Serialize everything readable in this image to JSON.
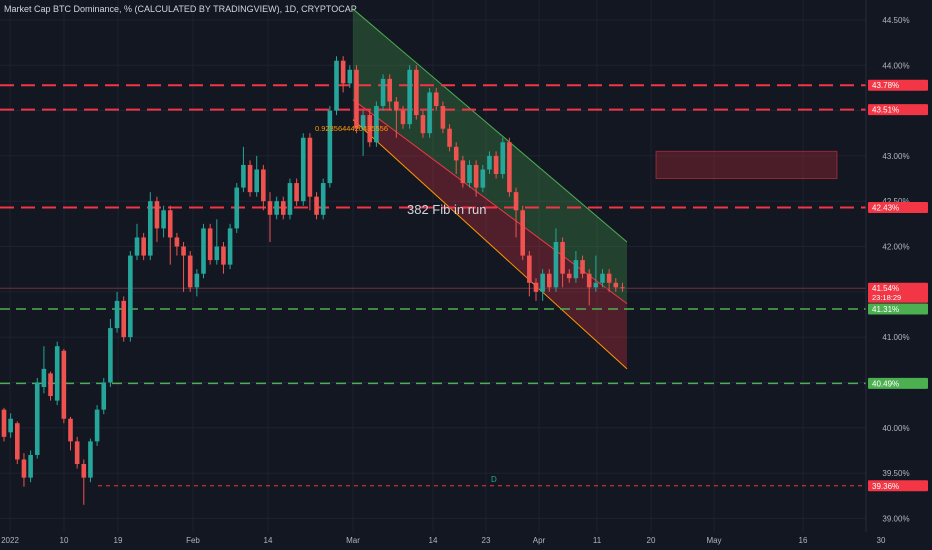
{
  "header": {
    "title": "Market Cap BTC Dominance, % (CALCULATED BY TRADINGVIEW), 1D, CRYPTOCAP"
  },
  "colors": {
    "background": "#131722",
    "grid": "#1e2230",
    "up": "#26a69a",
    "down": "#ef5350",
    "resistance": "#f23645",
    "support": "#4caf50",
    "axis_text": "#b2b5be"
  },
  "chart_data": {
    "type": "candlestick",
    "y_ticks": [
      "44.50%",
      "44.00%",
      "43.50%",
      "43.00%",
      "42.50%",
      "42.00%",
      "41.50%",
      "41.00%",
      "40.50%",
      "40.00%",
      "39.50%",
      "39.00%"
    ],
    "ylim": [
      38.85,
      44.72
    ],
    "x_ticks": [
      "2022",
      "10",
      "19",
      "Feb",
      "14",
      "Mar",
      "14",
      "23",
      "Apr",
      "11",
      "20",
      "May",
      "16",
      "30"
    ],
    "price_labels": [
      {
        "value": 43.78,
        "text": "43.78%",
        "kind": "resistance"
      },
      {
        "value": 43.51,
        "text": "43.51%",
        "kind": "resistance"
      },
      {
        "value": 42.43,
        "text": "42.43%",
        "kind": "resistance"
      },
      {
        "value": 41.54,
        "text": "41.54%",
        "kind": "last"
      },
      {
        "value": 41.31,
        "text": "41.31%",
        "kind": "support"
      },
      {
        "value": 40.49,
        "text": "40.49%",
        "kind": "support"
      },
      {
        "value": 39.36,
        "text": "39.36%",
        "kind": "resistance"
      }
    ],
    "countdown": "23:18:29",
    "annotations": {
      "channel_text": "382 Fib in run",
      "fib_value": "0.9235644420435556",
      "marker": "D"
    },
    "channel": {
      "upper_start": {
        "date": "Mar 1",
        "value": 44.62
      },
      "upper_end": {
        "date": "Apr 18",
        "value": 42.05
      },
      "mid_start": {
        "date": "Mar 1",
        "value": 43.62
      },
      "mid_end": {
        "date": "Apr 18",
        "value": 41.37
      },
      "lower_start": {
        "date": "Mar 1",
        "value": 43.4
      },
      "lower_end": {
        "date": "Apr 18",
        "value": 40.65
      }
    },
    "zone": {
      "from": "Apr 21",
      "to": "May 23",
      "top": 43.05,
      "bottom": 42.75
    },
    "candles": [
      [
        40.2,
        39.9,
        40.22,
        39.85
      ],
      [
        39.95,
        40.1,
        40.16,
        39.89
      ],
      [
        40.05,
        39.65,
        40.07,
        39.6
      ],
      [
        39.65,
        39.45,
        39.72,
        39.35
      ],
      [
        39.45,
        39.7,
        39.75,
        39.4
      ],
      [
        39.7,
        40.5,
        40.55,
        39.66
      ],
      [
        40.45,
        40.65,
        40.9,
        40.38
      ],
      [
        40.6,
        40.35,
        40.62,
        40.3
      ],
      [
        40.3,
        40.9,
        40.95,
        40.25
      ],
      [
        40.85,
        40.1,
        40.87,
        40.05
      ],
      [
        40.1,
        39.85,
        40.12,
        39.75
      ],
      [
        39.85,
        39.6,
        39.9,
        39.55
      ],
      [
        39.6,
        39.45,
        39.65,
        39.15
      ],
      [
        39.45,
        39.85,
        39.88,
        39.4
      ],
      [
        39.85,
        40.2,
        40.25,
        39.8
      ],
      [
        40.2,
        40.5,
        40.55,
        40.15
      ],
      [
        40.5,
        41.1,
        41.2,
        40.45
      ],
      [
        41.1,
        41.4,
        41.5,
        41.05
      ],
      [
        41.4,
        41.0,
        41.45,
        40.95
      ],
      [
        41.0,
        41.9,
        41.95,
        40.95
      ],
      [
        41.9,
        42.1,
        42.25,
        41.85
      ],
      [
        42.1,
        41.9,
        42.15,
        41.85
      ],
      [
        41.9,
        42.5,
        42.6,
        41.85
      ],
      [
        42.5,
        42.2,
        42.55,
        42.05
      ],
      [
        42.2,
        42.4,
        42.45,
        42.1
      ],
      [
        42.4,
        42.1,
        42.45,
        41.8
      ],
      [
        42.1,
        42.0,
        42.15,
        41.9
      ],
      [
        42.0,
        41.9,
        42.05,
        41.5
      ],
      [
        41.9,
        41.55,
        41.95,
        41.5
      ],
      [
        41.55,
        41.7,
        41.75,
        41.45
      ],
      [
        41.7,
        42.2,
        42.25,
        41.65
      ],
      [
        42.2,
        41.85,
        42.25,
        41.8
      ],
      [
        41.85,
        42.0,
        42.3,
        41.8
      ],
      [
        42.0,
        41.8,
        42.05,
        41.7
      ],
      [
        41.8,
        42.2,
        42.25,
        41.75
      ],
      [
        42.2,
        42.65,
        42.7,
        42.15
      ],
      [
        42.65,
        42.9,
        43.1,
        42.6
      ],
      [
        42.9,
        42.6,
        42.95,
        42.55
      ],
      [
        42.6,
        42.85,
        43.0,
        42.55
      ],
      [
        42.85,
        42.5,
        42.9,
        42.4
      ],
      [
        42.5,
        42.35,
        42.6,
        42.05
      ],
      [
        42.35,
        42.5,
        42.55,
        42.3
      ],
      [
        42.5,
        42.35,
        42.55,
        42.3
      ],
      [
        42.35,
        42.7,
        42.75,
        42.3
      ],
      [
        42.7,
        42.5,
        42.75,
        42.45
      ],
      [
        42.5,
        43.2,
        43.25,
        42.45
      ],
      [
        43.2,
        42.55,
        43.25,
        42.4
      ],
      [
        42.55,
        42.35,
        42.6,
        42.3
      ],
      [
        42.35,
        42.7,
        42.75,
        42.3
      ],
      [
        42.7,
        43.5,
        43.55,
        42.65
      ],
      [
        43.5,
        44.05,
        44.1,
        43.45
      ],
      [
        44.05,
        43.8,
        44.1,
        43.7
      ],
      [
        43.8,
        43.95,
        44.0,
        43.75
      ],
      [
        43.95,
        43.3,
        44.0,
        43.25
      ],
      [
        43.3,
        43.45,
        43.5,
        43.0
      ],
      [
        43.45,
        43.15,
        43.5,
        43.1
      ],
      [
        43.15,
        43.55,
        43.6,
        43.1
      ],
      [
        43.55,
        43.85,
        43.9,
        43.5
      ],
      [
        43.85,
        43.6,
        43.9,
        43.5
      ],
      [
        43.6,
        43.5,
        43.65,
        43.2
      ],
      [
        43.5,
        43.35,
        43.55,
        43.3
      ],
      [
        43.35,
        43.95,
        44.0,
        43.3
      ],
      [
        43.95,
        43.45,
        44.0,
        43.4
      ],
      [
        43.45,
        43.25,
        43.5,
        43.2
      ],
      [
        43.25,
        43.7,
        43.75,
        43.2
      ],
      [
        43.7,
        43.55,
        43.75,
        43.5
      ],
      [
        43.55,
        43.3,
        43.6,
        43.25
      ],
      [
        43.3,
        43.1,
        43.35,
        43.05
      ],
      [
        43.1,
        42.95,
        43.15,
        42.8
      ],
      [
        42.95,
        42.7,
        43.0,
        42.65
      ],
      [
        42.7,
        42.9,
        42.95,
        42.65
      ],
      [
        42.9,
        42.65,
        42.95,
        42.55
      ],
      [
        42.65,
        42.85,
        42.9,
        42.6
      ],
      [
        42.85,
        43.0,
        43.05,
        42.8
      ],
      [
        43.0,
        42.8,
        43.05,
        42.75
      ],
      [
        42.8,
        43.15,
        43.2,
        42.75
      ],
      [
        43.15,
        42.6,
        43.2,
        42.55
      ],
      [
        42.6,
        42.4,
        42.65,
        42.1
      ],
      [
        42.4,
        41.9,
        42.45,
        41.85
      ],
      [
        41.9,
        41.6,
        41.95,
        41.45
      ],
      [
        41.6,
        41.5,
        41.65,
        41.4
      ],
      [
        41.5,
        41.7,
        41.75,
        41.4
      ],
      [
        41.7,
        41.55,
        41.75,
        41.5
      ],
      [
        41.55,
        42.05,
        42.2,
        41.5
      ],
      [
        42.05,
        41.7,
        42.1,
        41.55
      ],
      [
        41.7,
        41.65,
        41.75,
        41.6
      ],
      [
        41.65,
        41.85,
        41.95,
        41.6
      ],
      [
        41.85,
        41.7,
        41.9,
        41.65
      ],
      [
        41.7,
        41.55,
        41.75,
        41.35
      ],
      [
        41.55,
        41.6,
        41.9,
        41.5
      ],
      [
        41.6,
        41.7,
        41.75,
        41.55
      ],
      [
        41.7,
        41.6,
        41.75,
        41.5
      ],
      [
        41.6,
        41.55,
        41.65,
        41.5
      ],
      [
        41.55,
        41.54,
        41.6,
        41.5
      ]
    ]
  }
}
